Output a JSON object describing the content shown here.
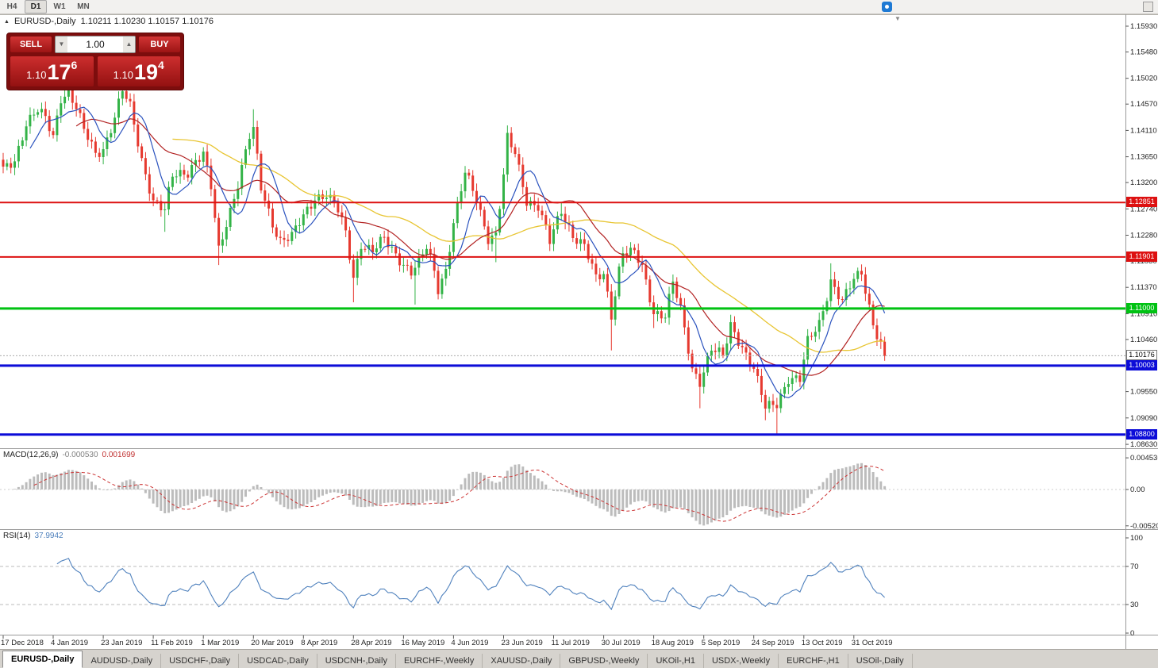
{
  "toolbar": {
    "timeframes": [
      {
        "label": "H4",
        "active": false
      },
      {
        "label": "D1",
        "active": true
      },
      {
        "label": "W1",
        "active": false
      },
      {
        "label": "MN",
        "active": false
      }
    ]
  },
  "chart_header": {
    "symbol_label": "EURUSD-,Daily",
    "ohlc": "1.10211 1.10230 1.10157 1.10176"
  },
  "trade_panel": {
    "sell_label": "SELL",
    "buy_label": "BUY",
    "volume": "1.00",
    "decrement_glyph": "▼",
    "increment_glyph": "▲",
    "sell_price": {
      "prefix": "1.10",
      "big": "17",
      "sup": "6"
    },
    "buy_price": {
      "prefix": "1.10",
      "big": "19",
      "sup": "4"
    }
  },
  "price_axis": {
    "labels": [
      "1.15930",
      "1.15480",
      "1.15020",
      "1.14570",
      "1.14110",
      "1.13650",
      "1.13200",
      "1.12740",
      "1.12280",
      "1.11830",
      "1.11370",
      "1.10910",
      "1.10460",
      "1.09550",
      "1.09090",
      "1.08630"
    ]
  },
  "levels": [
    {
      "text": "1.12851",
      "price": 1.12851,
      "color": "#dd1111",
      "width": 2
    },
    {
      "text": "1.11901",
      "price": 1.11901,
      "color": "#dd1111",
      "width": 2
    },
    {
      "text": "1.11000",
      "price": 1.11,
      "color": "#00c213",
      "width": 3
    },
    {
      "text": "1.10003",
      "price": 1.10003,
      "color": "#0c0cd8",
      "width": 3
    },
    {
      "text": "1.08800",
      "price": 1.088,
      "color": "#0c0cd8",
      "width": 3
    }
  ],
  "current_price": {
    "text": "1.10176",
    "value": 1.10176
  },
  "macd_panel": {
    "label": "MACD(12,26,9)",
    "value1": "-0.000530",
    "value2": "0.001699",
    "axis_labels": [
      "0.004536",
      "0.00",
      "-0.00520"
    ]
  },
  "rsi_panel": {
    "label": "RSI(14)",
    "value": "37.9942",
    "axis_labels": [
      "100",
      "70",
      "30",
      "0"
    ],
    "levels": [
      70,
      30
    ]
  },
  "date_axis": {
    "labels": [
      "17 Dec 2018",
      "4 Jan 2019",
      "23 Jan 2019",
      "11 Feb 2019",
      "1 Mar 2019",
      "20 Mar 2019",
      "8 Apr 2019",
      "28 Apr 2019",
      "16 May 2019",
      "4 Jun 2019",
      "23 Jun 2019",
      "11 Jul 2019",
      "30 Jul 2019",
      "18 Aug 2019",
      "5 Sep 2019",
      "24 Sep 2019",
      "13 Oct 2019",
      "31 Oct 2019"
    ],
    "bars_per_label": 13
  },
  "bottom_tabs": [
    {
      "label": "EURUSD-,Daily",
      "active": true
    },
    {
      "label": "AUDUSD-,Daily",
      "active": false
    },
    {
      "label": "USDCHF-,Daily",
      "active": false
    },
    {
      "label": "USDCAD-,Daily",
      "active": false
    },
    {
      "label": "USDCNH-,Daily",
      "active": false
    },
    {
      "label": "EURCHF-,Weekly",
      "active": false
    },
    {
      "label": "XAUUSD-,Daily",
      "active": false
    },
    {
      "label": "GBPUSD-,Weekly",
      "active": false
    },
    {
      "label": "UKOil-,H1",
      "active": false
    },
    {
      "label": "USDX-,Weekly",
      "active": false
    },
    {
      "label": "EURCHF-,H1",
      "active": false
    },
    {
      "label": "USOil-,Daily",
      "active": false
    }
  ],
  "chart_data": {
    "type": "candlestick",
    "symbol": "EURUSD-",
    "timeframe": "Daily",
    "title": "EURUSD-,Daily",
    "current_ohlc": {
      "open": 1.10211,
      "high": 1.1023,
      "low": 1.10157,
      "close": 1.10176
    },
    "bid": 1.10176,
    "ask": 1.10194,
    "y_axis_range": [
      1.0863,
      1.1593
    ],
    "x_range_dates": [
      "17 Dec 2018",
      "8 Nov 2019"
    ],
    "horizontal_levels": [
      1.12851,
      1.11901,
      1.11,
      1.10003,
      1.088
    ],
    "indicators": {
      "macd": {
        "params": [
          12,
          26,
          9
        ],
        "value": -0.00053,
        "signal_value": 0.001699,
        "axis_max": 0.004536,
        "axis_min": -0.0052
      },
      "rsi": {
        "params": [
          14
        ],
        "value": 37.9942,
        "levels": [
          70,
          30
        ],
        "range": [
          0,
          100
        ]
      }
    },
    "candle_count": 230,
    "last_close": 1.10176,
    "anchors": [
      [
        0,
        1.134
      ],
      [
        3,
        1.136
      ],
      [
        6,
        1.1425
      ],
      [
        9,
        1.1445
      ],
      [
        11,
        1.143
      ],
      [
        13,
        1.14
      ],
      [
        15,
        1.147
      ],
      [
        17,
        1.148
      ],
      [
        19,
        1.145
      ],
      [
        21,
        1.141
      ],
      [
        24,
        1.137
      ],
      [
        26,
        1.138
      ],
      [
        29,
        1.1435
      ],
      [
        31,
        1.148
      ],
      [
        33,
        1.145
      ],
      [
        36,
        1.136
      ],
      [
        39,
        1.129
      ],
      [
        42,
        1.127
      ],
      [
        44,
        1.133
      ],
      [
        48,
        1.134
      ],
      [
        50,
        1.136
      ],
      [
        52,
        1.137
      ],
      [
        54,
        1.131
      ],
      [
        56,
        1.12
      ],
      [
        58,
        1.125
      ],
      [
        61,
        1.132
      ],
      [
        64,
        1.14
      ],
      [
        65,
        1.141
      ],
      [
        67,
        1.131
      ],
      [
        70,
        1.125
      ],
      [
        72,
        1.122
      ],
      [
        75,
        1.1225
      ],
      [
        78,
        1.126
      ],
      [
        81,
        1.1295
      ],
      [
        84,
        1.13
      ],
      [
        87,
        1.127
      ],
      [
        89,
        1.123
      ],
      [
        91,
        1.1155
      ],
      [
        93,
        1.1215
      ],
      [
        96,
        1.12
      ],
      [
        99,
        1.122
      ],
      [
        102,
        1.1195
      ],
      [
        104,
        1.118
      ],
      [
        106,
        1.1165
      ],
      [
        108,
        1.118
      ],
      [
        110,
        1.1205
      ],
      [
        112,
        1.1165
      ],
      [
        113,
        1.1135
      ],
      [
        115,
        1.117
      ],
      [
        117,
        1.125
      ],
      [
        120,
        1.1335
      ],
      [
        123,
        1.129
      ],
      [
        126,
        1.1225
      ],
      [
        128,
        1.123
      ],
      [
        130,
        1.133
      ],
      [
        131,
        1.1395
      ],
      [
        133,
        1.137
      ],
      [
        136,
        1.129
      ],
      [
        139,
        1.128
      ],
      [
        142,
        1.1215
      ],
      [
        145,
        1.127
      ],
      [
        148,
        1.123
      ],
      [
        151,
        1.121
      ],
      [
        154,
        1.115
      ],
      [
        156,
        1.116
      ],
      [
        158,
        1.109
      ],
      [
        160,
        1.117
      ],
      [
        161,
        1.12
      ],
      [
        164,
        1.1195
      ],
      [
        166,
        1.117
      ],
      [
        169,
        1.1095
      ],
      [
        172,
        1.109
      ],
      [
        174,
        1.1145
      ],
      [
        176,
        1.1095
      ],
      [
        179,
        1.0995
      ],
      [
        181,
        1.0975
      ],
      [
        184,
        1.103
      ],
      [
        187,
        1.1015
      ],
      [
        189,
        1.107
      ],
      [
        192,
        1.1035
      ],
      [
        195,
        1.0995
      ],
      [
        198,
        1.0925
      ],
      [
        201,
        1.0935
      ],
      [
        204,
        1.098
      ],
      [
        207,
        1.0975
      ],
      [
        209,
        1.104
      ],
      [
        212,
        1.1075
      ],
      [
        215,
        1.115
      ],
      [
        218,
        1.111
      ],
      [
        221,
        1.115
      ],
      [
        223,
        1.1165
      ],
      [
        226,
        1.1075
      ],
      [
        229,
        1.10176
      ]
    ],
    "high_spikes": [
      [
        16,
        1.1485
      ],
      [
        31,
        1.15
      ],
      [
        65,
        1.1448
      ],
      [
        120,
        1.1348
      ],
      [
        131,
        1.1412
      ],
      [
        145,
        1.1285
      ],
      [
        215,
        1.1179
      ],
      [
        223,
        1.1175
      ]
    ],
    "low_spikes": [
      [
        42,
        1.1234
      ],
      [
        56,
        1.1176
      ],
      [
        72,
        1.1214
      ],
      [
        91,
        1.1111
      ],
      [
        107,
        1.1107
      ],
      [
        113,
        1.1116
      ],
      [
        128,
        1.1181
      ],
      [
        158,
        1.1027
      ],
      [
        169,
        1.1066
      ],
      [
        181,
        1.0926
      ],
      [
        198,
        1.0905
      ],
      [
        201,
        1.0879
      ]
    ],
    "colors": {
      "candle_up": "#33b347",
      "candle_down": "#e6392f",
      "ma_fast": "#2a52be",
      "ma_mid": "#b22222",
      "ma_slow": "#e8c532",
      "macd_hist": "#bcbcbc",
      "macd_signal": "#cc3333",
      "rsi_line": "#4f81bd"
    }
  }
}
